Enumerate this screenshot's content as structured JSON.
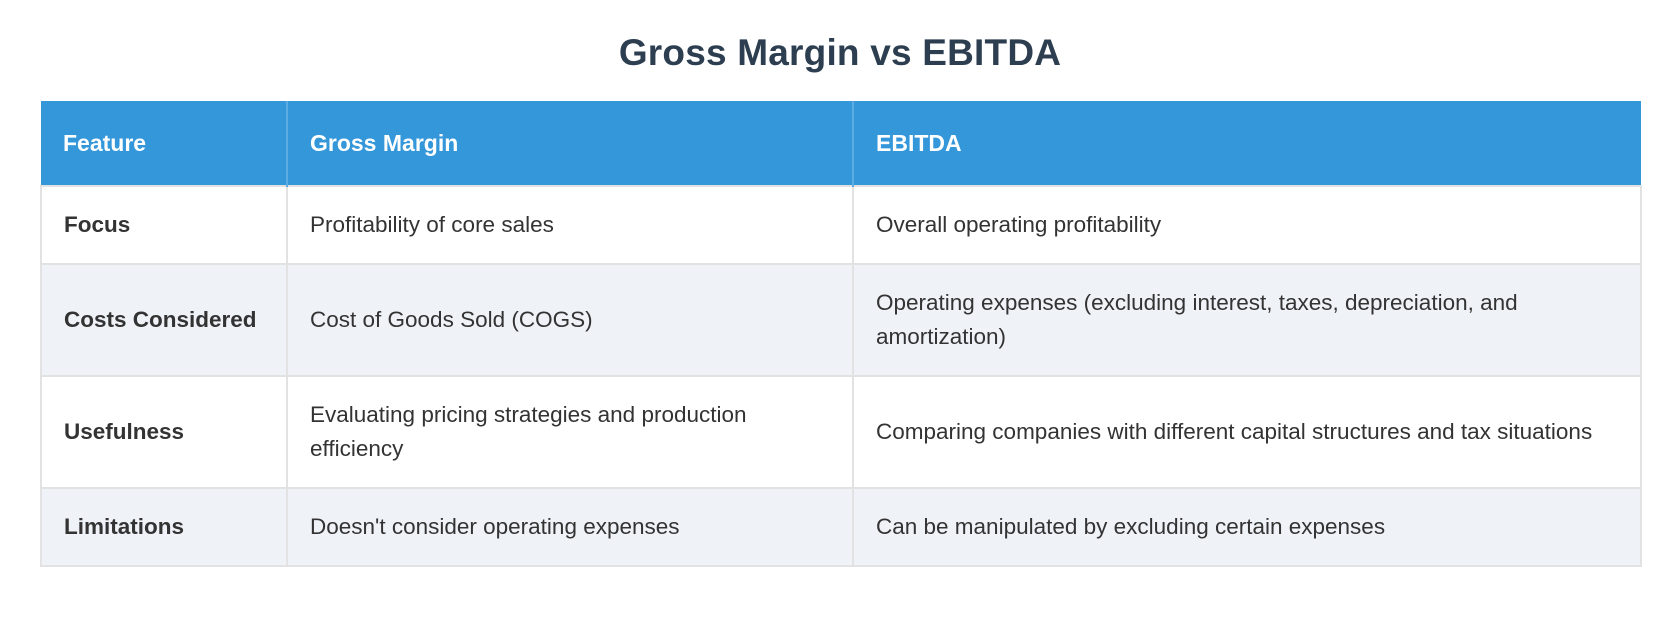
{
  "title": "Gross Margin vs EBITDA",
  "table": {
    "headers": [
      "Feature",
      "Gross Margin",
      "EBITDA"
    ],
    "rows": [
      {
        "feature": "Focus",
        "gross_margin": "Profitability of core sales",
        "ebitda": "Overall operating profitability"
      },
      {
        "feature": "Costs Considered",
        "gross_margin": "Cost of Goods Sold (COGS)",
        "ebitda": "Operating expenses (excluding interest, taxes, depreciation, and amortization)"
      },
      {
        "feature": "Usefulness",
        "gross_margin": "Evaluating pricing strategies and production efficiency",
        "ebitda": "Comparing companies with different capital structures and tax situations"
      },
      {
        "feature": "Limitations",
        "gross_margin": "Doesn't consider operating expenses",
        "ebitda": "Can be manipulated by excluding certain expenses"
      }
    ]
  },
  "colors": {
    "header_bg": "#3497da",
    "header_divider": "#5cace2",
    "header_text": "#ffffff",
    "title_text": "#2c3e50",
    "body_text": "#333333",
    "alt_row_bg": "#eff3f8",
    "cell_border": "#e2e2e2",
    "page_bg": "#ffffff"
  }
}
